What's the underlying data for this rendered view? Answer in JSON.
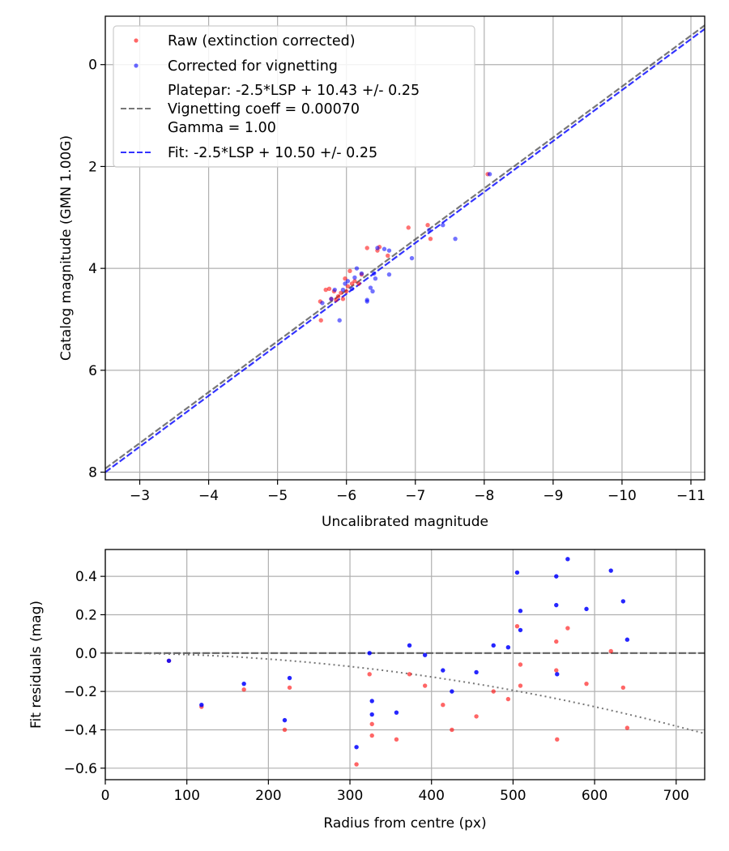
{
  "chart_data": [
    {
      "type": "scatter",
      "xlabel": "Uncalibrated magnitude",
      "ylabel": "Catalog magnitude (GMN 1.00G)",
      "xlim": [
        -2.5,
        -11.2
      ],
      "ylim": [
        8.15,
        -0.95
      ],
      "x_ticks": [
        -3,
        -4,
        -5,
        -6,
        -7,
        -8,
        -9,
        -10,
        -11
      ],
      "x_tick_labels": [
        "−3",
        "−4",
        "−5",
        "−6",
        "−7",
        "−8",
        "−9",
        "−10",
        "−11"
      ],
      "y_ticks": [
        0,
        2,
        4,
        6,
        8
      ],
      "y_tick_labels": [
        "0",
        "2",
        "4",
        "6",
        "8"
      ],
      "grid": true,
      "legend": {
        "placement": "top-left",
        "entries": [
          {
            "label": "Raw (extinction corrected)",
            "kind": "marker",
            "color": "#ff0000"
          },
          {
            "label": "Corrected for vignetting",
            "kind": "marker",
            "color": "#0000ff"
          },
          {
            "lines": [
              "Platepar: -2.5*LSP + 10.43 +/- 0.25",
              "Vignetting coeff = 0.00070",
              "Gamma = 1.00"
            ],
            "kind": "dashed",
            "color": "#555555"
          },
          {
            "label": "Fit: -2.5*LSP + 10.50 +/- 0.25",
            "kind": "dashed",
            "color": "#0000ff"
          }
        ]
      },
      "lines": [
        {
          "name": "Platepar",
          "slope": 1.0,
          "intercept": 10.43,
          "color": "#555555",
          "style": "dashed"
        },
        {
          "name": "Fit",
          "slope": 1.0,
          "intercept": 10.5,
          "color": "#0000ff",
          "style": "dashed"
        }
      ],
      "series": [
        {
          "name": "Raw (extinction corrected)",
          "color": "#ff0000",
          "points": [
            [
              -5.62,
              4.65
            ],
            [
              -5.63,
              5.02
            ],
            [
              -5.7,
              4.42
            ],
            [
              -5.75,
              4.4
            ],
            [
              -5.78,
              4.6
            ],
            [
              -5.82,
              4.45
            ],
            [
              -5.85,
              4.62
            ],
            [
              -5.88,
              4.55
            ],
            [
              -5.92,
              4.48
            ],
            [
              -5.95,
              4.6
            ],
            [
              -5.98,
              4.2
            ],
            [
              -6.0,
              4.45
            ],
            [
              -6.02,
              4.35
            ],
            [
              -6.05,
              4.05
            ],
            [
              -6.08,
              4.3
            ],
            [
              -6.12,
              4.25
            ],
            [
              -6.18,
              4.3
            ],
            [
              -6.22,
              4.12
            ],
            [
              -6.3,
              3.6
            ],
            [
              -6.45,
              3.65
            ],
            [
              -6.48,
              3.58
            ],
            [
              -6.6,
              3.75
            ],
            [
              -6.9,
              3.2
            ],
            [
              -7.18,
              3.15
            ],
            [
              -7.22,
              3.42
            ],
            [
              -8.05,
              2.15
            ]
          ]
        },
        {
          "name": "Corrected for vignetting",
          "color": "#0000ff",
          "points": [
            [
              -5.65,
              4.68
            ],
            [
              -5.78,
              4.6
            ],
            [
              -5.83,
              4.42
            ],
            [
              -5.9,
              5.02
            ],
            [
              -5.95,
              4.42
            ],
            [
              -5.98,
              4.3
            ],
            [
              -6.02,
              4.25
            ],
            [
              -6.08,
              4.4
            ],
            [
              -6.12,
              4.18
            ],
            [
              -6.15,
              4.0
            ],
            [
              -6.22,
              4.1
            ],
            [
              -6.3,
              4.62
            ],
            [
              -6.3,
              4.65
            ],
            [
              -6.35,
              4.38
            ],
            [
              -6.38,
              4.45
            ],
            [
              -6.4,
              4.1
            ],
            [
              -6.42,
              4.2
            ],
            [
              -6.45,
              3.6
            ],
            [
              -6.55,
              3.62
            ],
            [
              -6.62,
              3.65
            ],
            [
              -6.62,
              4.12
            ],
            [
              -6.95,
              3.8
            ],
            [
              -7.2,
              3.25
            ],
            [
              -7.4,
              3.15
            ],
            [
              -7.58,
              3.42
            ],
            [
              -8.08,
              2.15
            ]
          ]
        }
      ]
    },
    {
      "type": "scatter",
      "xlabel": "Radius from centre (px)",
      "ylabel": "Fit residuals (mag)",
      "xlim": [
        0,
        735
      ],
      "ylim": [
        -0.66,
        0.54
      ],
      "x_ticks": [
        0,
        100,
        200,
        300,
        400,
        500,
        600,
        700
      ],
      "x_tick_labels": [
        "0",
        "100",
        "200",
        "300",
        "400",
        "500",
        "600",
        "700"
      ],
      "y_ticks": [
        -0.6,
        -0.4,
        -0.2,
        0.0,
        0.2,
        0.4
      ],
      "y_tick_labels": [
        "−0.6",
        "−0.4",
        "−0.2",
        "0.0",
        "0.2",
        "0.4"
      ],
      "grid": true,
      "reference_line": {
        "y": 0.0,
        "color": "#555555",
        "style": "dashed"
      },
      "vignetting_curve": {
        "coeff": 0.0007,
        "color": "#777777",
        "style": "dotted"
      },
      "series": [
        {
          "name": "Raw (extinction corrected)",
          "color": "#ff0000",
          "points": [
            [
              78,
              -0.04
            ],
            [
              118,
              -0.28
            ],
            [
              170,
              -0.19
            ],
            [
              220,
              -0.4
            ],
            [
              226,
              -0.18
            ],
            [
              308,
              -0.58
            ],
            [
              324,
              -0.11
            ],
            [
              327,
              -0.37
            ],
            [
              327,
              -0.43
            ],
            [
              357,
              -0.45
            ],
            [
              373,
              -0.11
            ],
            [
              392,
              -0.17
            ],
            [
              414,
              -0.27
            ],
            [
              425,
              -0.4
            ],
            [
              455,
              -0.33
            ],
            [
              476,
              -0.2
            ],
            [
              494,
              -0.24
            ],
            [
              505,
              0.14
            ],
            [
              509,
              -0.06
            ],
            [
              509,
              -0.17
            ],
            [
              553,
              0.06
            ],
            [
              553,
              -0.09
            ],
            [
              554,
              -0.45
            ],
            [
              567,
              0.13
            ],
            [
              590,
              -0.16
            ],
            [
              620,
              0.01
            ],
            [
              635,
              -0.18
            ],
            [
              640,
              -0.39
            ]
          ]
        },
        {
          "name": "Corrected for vignetting",
          "color": "#0000ff",
          "points": [
            [
              78,
              -0.04
            ],
            [
              118,
              -0.27
            ],
            [
              170,
              -0.16
            ],
            [
              220,
              -0.35
            ],
            [
              226,
              -0.13
            ],
            [
              308,
              -0.49
            ],
            [
              324,
              0.0
            ],
            [
              327,
              -0.25
            ],
            [
              327,
              -0.32
            ],
            [
              357,
              -0.31
            ],
            [
              373,
              0.04
            ],
            [
              392,
              -0.01
            ],
            [
              414,
              -0.09
            ],
            [
              425,
              -0.2
            ],
            [
              455,
              -0.1
            ],
            [
              476,
              0.04
            ],
            [
              494,
              0.03
            ],
            [
              505,
              0.42
            ],
            [
              509,
              0.22
            ],
            [
              509,
              0.12
            ],
            [
              553,
              0.4
            ],
            [
              553,
              0.25
            ],
            [
              554,
              -0.11
            ],
            [
              567,
              0.49
            ],
            [
              590,
              0.23
            ],
            [
              620,
              0.43
            ],
            [
              635,
              0.27
            ],
            [
              640,
              0.07
            ]
          ]
        }
      ]
    }
  ]
}
